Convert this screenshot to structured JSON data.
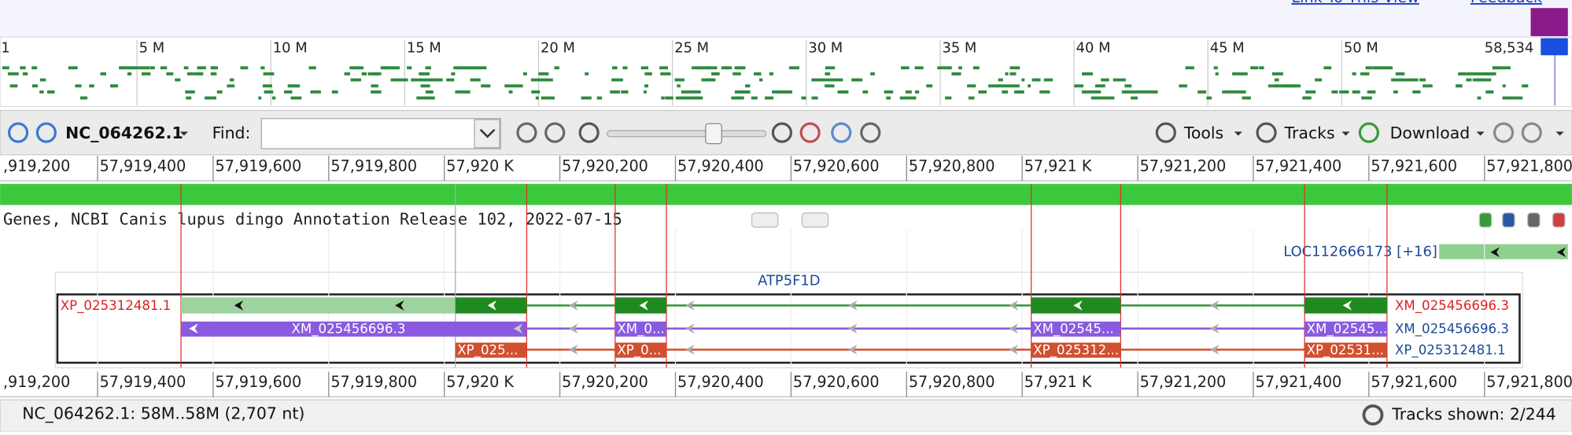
{
  "header": {
    "links": [
      "Link To This View",
      "Feedback"
    ]
  },
  "overview": {
    "ticks": [
      "1",
      "5 M",
      "10 M",
      "15 M",
      "20 M",
      "25 M",
      "30 M",
      "35 M",
      "40 M",
      "45 M",
      "50 M",
      "58,534"
    ]
  },
  "toolbar": {
    "sequence": "NC_064262.1",
    "find_label": "Find:",
    "tools": "Tools",
    "tracks": "Tracks",
    "download": "Download"
  },
  "ruler": {
    "ticks": [
      ",919,200",
      "57,919,400",
      "57,919,600",
      "57,919,800",
      "57,920 K",
      "57,920,200",
      "57,920,400",
      "57,920,600",
      "57,920,800",
      "57,921 K",
      "57,921,200",
      "57,921,400",
      "57,921,600",
      "57,921,800"
    ]
  },
  "track": {
    "title": "Genes, NCBI Canis lupus dingo Annotation Release 102, 2022-07-15",
    "locus": "LOC112666173 [+16]",
    "gene": "ATP5F1D",
    "left_label": "XP_025312481.1",
    "right_labels": [
      "XM_025456696.3",
      "XM_025456696.3",
      "XP_025312481.1"
    ],
    "mrna_labels": [
      "XM_025456696.3",
      "XM_0...",
      "XM_02545...",
      "XM_02545..."
    ],
    "protein_labels": [
      "XP_025...",
      "XP_0...",
      "XP_025312...",
      "XP_02531..."
    ]
  },
  "status": {
    "location": "NC_064262.1: 58M..58M (2,707 nt)",
    "tracks_shown": "Tracks shown: 2/244"
  }
}
